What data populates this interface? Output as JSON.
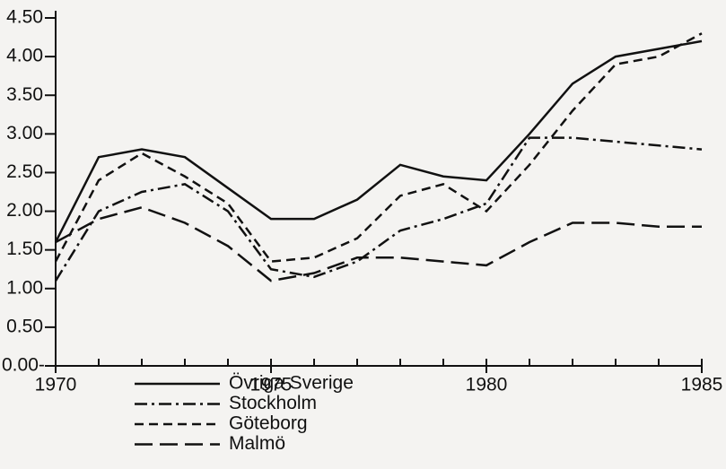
{
  "chart_data": {
    "type": "line",
    "x": [
      1970,
      1971,
      1972,
      1973,
      1974,
      1975,
      1976,
      1977,
      1978,
      1979,
      1980,
      1981,
      1982,
      1983,
      1984,
      1985
    ],
    "xlim": [
      1970,
      1985
    ],
    "xticks": [
      1970,
      1975,
      1980,
      1985
    ],
    "ylim": [
      0,
      4.5
    ],
    "yticks": [
      {
        "value": 0,
        "label": "0.00-"
      },
      {
        "value": 0.5,
        "label": "0.50"
      },
      {
        "value": 1,
        "label": "1.00"
      },
      {
        "value": 1.5,
        "label": "1.50"
      },
      {
        "value": 2,
        "label": "2.00"
      },
      {
        "value": 2.5,
        "label": "2.50"
      },
      {
        "value": 3,
        "label": "3.00"
      },
      {
        "value": 3.5,
        "label": "3.50"
      },
      {
        "value": 4,
        "label": "4.00"
      },
      {
        "value": 4.5,
        "label": "4.50"
      }
    ],
    "series": [
      {
        "name": "Övriga Sverige",
        "color": "#111111",
        "dash": "solid",
        "values": [
          1.6,
          2.7,
          2.8,
          2.7,
          2.3,
          1.9,
          1.9,
          2.15,
          2.6,
          2.45,
          2.4,
          3.0,
          3.65,
          4.0,
          4.1,
          4.2
        ]
      },
      {
        "name": "Stockholm",
        "color": "#111111",
        "dash": "dashdot",
        "values": [
          1.1,
          2.0,
          2.25,
          2.35,
          2.0,
          1.25,
          1.15,
          1.35,
          1.75,
          1.9,
          2.1,
          2.95,
          2.95,
          2.9,
          2.85,
          2.8
        ]
      },
      {
        "name": "Göteborg",
        "color": "#111111",
        "dash": "dashed",
        "values": [
          1.35,
          2.4,
          2.75,
          2.45,
          2.1,
          1.35,
          1.4,
          1.65,
          2.2,
          2.35,
          2.0,
          2.6,
          3.3,
          3.9,
          4.0,
          4.3
        ]
      },
      {
        "name": "Malmö",
        "color": "#111111",
        "dash": "longdash",
        "values": [
          1.6,
          1.9,
          2.05,
          1.85,
          1.55,
          1.1,
          1.2,
          1.4,
          1.4,
          1.35,
          1.3,
          1.6,
          1.85,
          1.85,
          1.8,
          1.8
        ]
      }
    ]
  }
}
